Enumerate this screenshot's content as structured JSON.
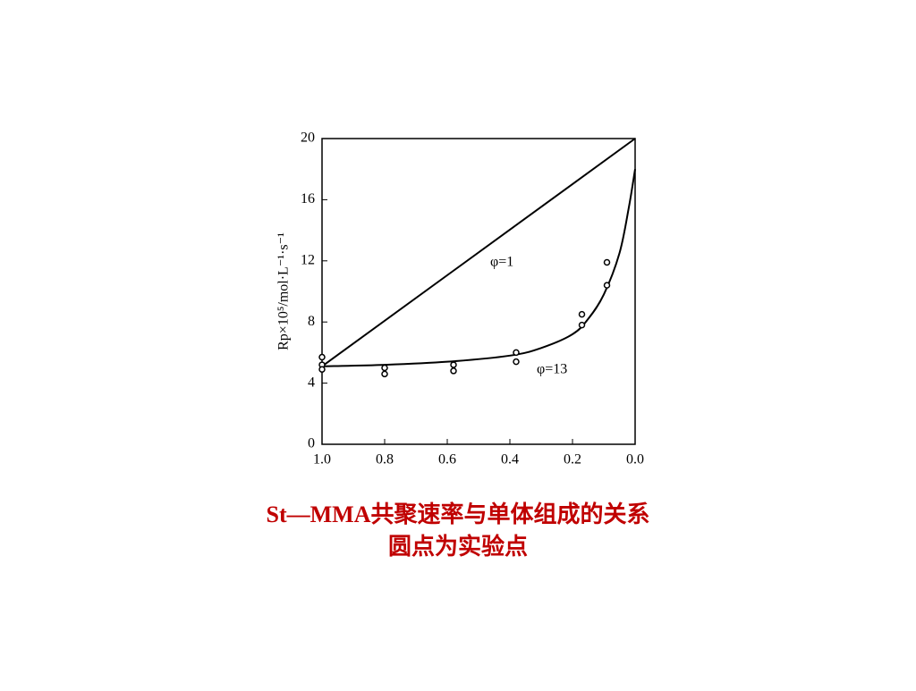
{
  "chart_data": {
    "type": "line",
    "y_label": "Rp×10⁵/mol·L⁻¹·s⁻¹",
    "xlim": [
      1,
      0
    ],
    "ylim": [
      0,
      20
    ],
    "xticks": [
      {
        "value": 1,
        "label": "1.0"
      },
      0.8,
      0.6,
      0.4,
      0.2,
      {
        "value": 0,
        "label": "0.0"
      }
    ],
    "yticks": [
      0,
      4,
      8,
      12,
      16,
      20
    ],
    "series": [
      {
        "name": "φ=1",
        "color": "#000000",
        "x": [
          1,
          0
        ],
        "values": [
          5.1,
          20
        ]
      },
      {
        "name": "φ=13",
        "color": "#000000",
        "x": [
          1,
          0.8,
          0.6,
          0.4,
          0.3,
          0.2,
          0.15,
          0.1,
          0.05,
          0.02,
          0
        ],
        "values": [
          5.1,
          5.2,
          5.4,
          5.8,
          6.3,
          7.2,
          8.2,
          9.8,
          12.5,
          15.5,
          18
        ]
      }
    ],
    "points": {
      "color": "#000000",
      "x": [
        1,
        1,
        1,
        0.8,
        0.8,
        0.58,
        0.58,
        0.38,
        0.38,
        0.17,
        0.17,
        0.09,
        0.09
      ],
      "values": [
        5.7,
        5.2,
        4.9,
        5.0,
        4.6,
        5.2,
        4.8,
        6.0,
        5.4,
        8.5,
        7.8,
        11.9,
        10.4
      ]
    }
  },
  "caption": [
    "St—MMA共聚速率与单体组成的关系",
    "圆点为实验点"
  ]
}
